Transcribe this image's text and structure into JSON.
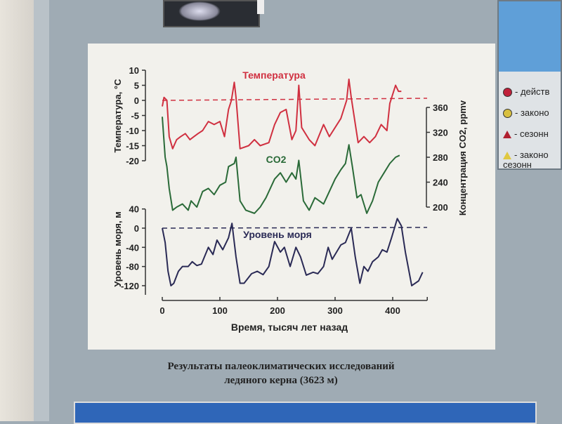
{
  "caption": {
    "line1": "Результаты палеоклиматических исследований",
    "line2": "ледяного керна (3623 м)"
  },
  "legend": [
    {
      "label": "- действ",
      "symbol": "circle",
      "color": "#c0203a"
    },
    {
      "label": "- законо",
      "symbol": "circle",
      "color": "#d8c040"
    },
    {
      "label": "- сезонн",
      "symbol": "triangle",
      "color": "#b02030"
    },
    {
      "label": "- законо сезонн",
      "symbol": "triangle",
      "color": "#e0c840"
    }
  ],
  "chart_data": {
    "type": "line",
    "xlabel": "Время, тысяч лет назад",
    "xticks": [
      0,
      100,
      200,
      300,
      400
    ],
    "xlim": [
      0,
      460
    ],
    "panels": [
      {
        "name": "Температура",
        "ylabel": "Температура, °C",
        "yticks": [
          10,
          5,
          0,
          -5,
          -10,
          -15,
          -20
        ],
        "ylim": [
          -20,
          10
        ],
        "color": "#d03040",
        "reference": 0,
        "x": [
          0,
          3,
          8,
          12,
          18,
          25,
          32,
          40,
          48,
          55,
          62,
          70,
          80,
          90,
          100,
          108,
          115,
          120,
          125,
          128,
          135,
          150,
          160,
          170,
          185,
          195,
          205,
          215,
          225,
          232,
          237,
          242,
          255,
          265,
          280,
          290,
          300,
          310,
          320,
          324,
          328,
          340,
          350,
          360,
          370,
          380,
          390,
          395,
          405,
          410,
          415
        ],
        "y": [
          -2,
          1,
          0,
          -12,
          -16,
          -13,
          -12,
          -11,
          -13,
          -12,
          -11,
          -10,
          -7,
          -8,
          -7,
          -12,
          -3,
          0,
          6,
          1,
          -16,
          -15,
          -13,
          -15,
          -14,
          -8,
          -4,
          -3,
          -13,
          -10,
          5,
          -9,
          -13,
          -15,
          -8,
          -12,
          -9,
          -6,
          0,
          7,
          1,
          -14,
          -12,
          -14,
          -12,
          -8,
          -10,
          -1,
          5,
          3,
          3
        ]
      },
      {
        "name": "CO2",
        "ylabel": "Концентрация CO2, ppmv",
        "yticks": [
          360,
          320,
          280,
          240,
          200
        ],
        "ylim": [
          190,
          365
        ],
        "color": "#2a6a38",
        "x": [
          0,
          5,
          8,
          12,
          18,
          25,
          35,
          45,
          50,
          60,
          70,
          80,
          90,
          100,
          110,
          115,
          125,
          128,
          135,
          145,
          160,
          170,
          180,
          195,
          205,
          215,
          225,
          232,
          237,
          245,
          255,
          265,
          280,
          290,
          300,
          310,
          318,
          324,
          330,
          338,
          345,
          355,
          365,
          375,
          385,
          395,
          405,
          412
        ],
        "y": [
          345,
          280,
          265,
          230,
          195,
          200,
          205,
          195,
          210,
          200,
          225,
          230,
          220,
          235,
          240,
          265,
          270,
          280,
          210,
          195,
          190,
          200,
          215,
          245,
          255,
          240,
          255,
          245,
          275,
          210,
          195,
          215,
          205,
          225,
          245,
          260,
          270,
          300,
          265,
          215,
          220,
          190,
          210,
          240,
          255,
          270,
          280,
          283
        ]
      },
      {
        "name": "Уровень моря",
        "ylabel": "Уровень моря, м",
        "yticks": [
          40,
          0,
          -40,
          -80,
          -120
        ],
        "ylim": [
          -150,
          40
        ],
        "color": "#2a2a55",
        "reference": 0,
        "x": [
          0,
          5,
          10,
          15,
          20,
          28,
          35,
          45,
          52,
          60,
          68,
          80,
          88,
          95,
          105,
          115,
          121,
          128,
          135,
          142,
          155,
          165,
          175,
          185,
          195,
          205,
          212,
          222,
          232,
          240,
          250,
          262,
          270,
          280,
          288,
          295,
          310,
          318,
          328,
          335,
          343,
          350,
          357,
          365,
          375,
          382,
          390,
          398,
          408,
          415,
          422,
          433,
          445,
          452
        ],
        "y": [
          0,
          -30,
          -90,
          -120,
          -115,
          -90,
          -80,
          -80,
          -70,
          -78,
          -75,
          -40,
          -55,
          -25,
          -45,
          -20,
          10,
          -60,
          -115,
          -115,
          -95,
          -90,
          -97,
          -80,
          -28,
          -50,
          -40,
          -80,
          -40,
          -60,
          -98,
          -92,
          -95,
          -80,
          -40,
          -65,
          -35,
          -30,
          0,
          -60,
          -115,
          -80,
          -90,
          -70,
          -60,
          -45,
          -50,
          -20,
          20,
          5,
          -50,
          -120,
          -110,
          -92
        ]
      }
    ]
  }
}
